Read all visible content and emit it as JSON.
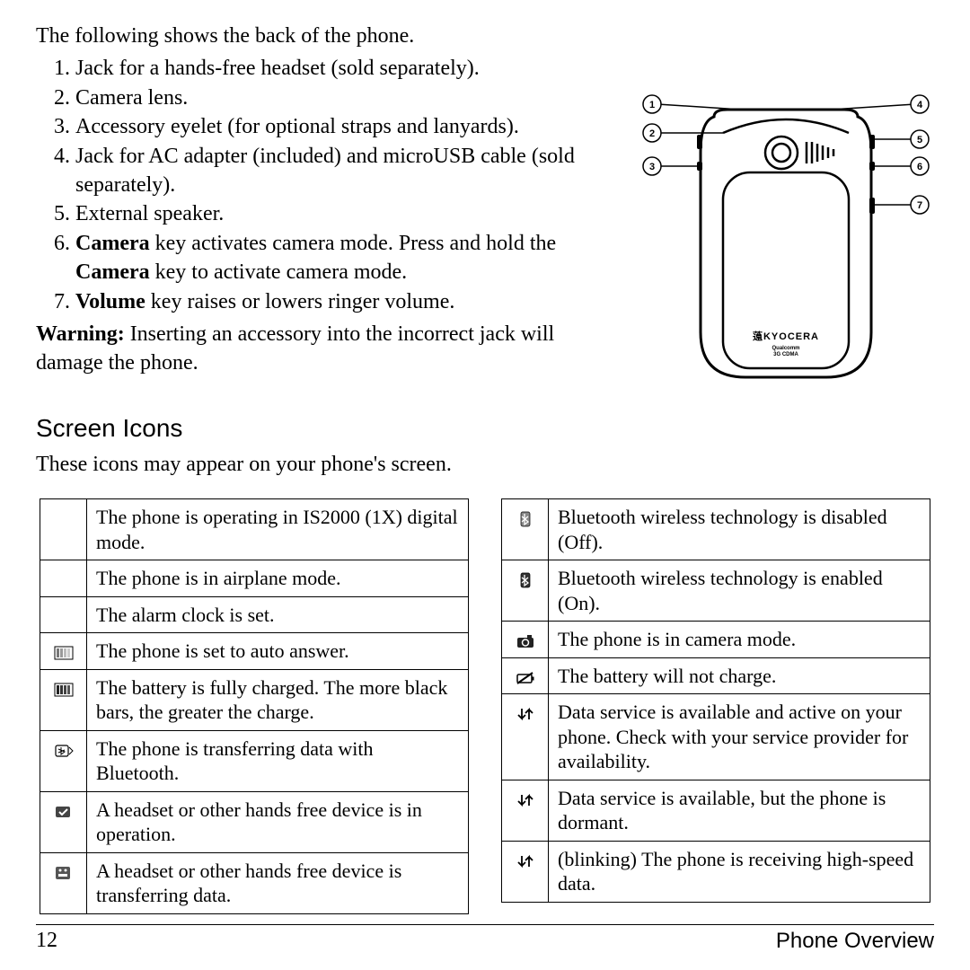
{
  "intro": "The following shows the back of the phone.",
  "features": [
    {
      "text": "Jack for a hands-free headset (sold separately)."
    },
    {
      "text": "Camera lens."
    },
    {
      "text": "Accessory eyelet (for optional straps and lanyards)."
    },
    {
      "text": "Jack for AC adapter (included) and microUSB cable (sold separately)."
    },
    {
      "text": "External speaker."
    },
    {
      "prefix_bold": "Camera",
      "mid": " key activates camera mode. Press and hold the ",
      "mid_bold": "Camera",
      "suffix": " key to activate camera mode."
    },
    {
      "prefix_bold": "Volume",
      "suffix": " key raises or lowers ringer volume."
    }
  ],
  "warning_label": "Warning:",
  "warning_text": " Inserting an accessory into the incorrect jack will damage the phone.",
  "section_heading": "Screen Icons",
  "section_intro": "These icons may appear on your phone's screen.",
  "left_table": [
    {
      "icon": "none",
      "desc": "The phone is operating in IS2000 (1X) digital mode."
    },
    {
      "icon": "none",
      "desc": "The phone is in airplane mode."
    },
    {
      "icon": "none",
      "desc": "The alarm clock is set."
    },
    {
      "icon": "bars-light",
      "desc": "The phone is set to auto answer."
    },
    {
      "icon": "bars-dark",
      "desc": "The battery is fully charged. The more black bars, the greater the charge."
    },
    {
      "icon": "bt-transfer",
      "desc": "The phone is transferring data with Bluetooth."
    },
    {
      "icon": "headset-check",
      "desc": "A headset or other hands free device is in operation."
    },
    {
      "icon": "headset-data",
      "desc": "A headset or other hands free device is transferring data."
    }
  ],
  "right_table": [
    {
      "icon": "bt-off",
      "desc": "Bluetooth wireless technology is disabled (Off)."
    },
    {
      "icon": "bt-on",
      "desc": "Bluetooth wireless technology is enabled (On)."
    },
    {
      "icon": "camera",
      "desc": "The phone is in camera mode."
    },
    {
      "icon": "battery-slash",
      "desc": "The battery will not charge."
    },
    {
      "icon": "arrows",
      "desc": "Data service is available and active on your phone. Check with your service provider for availability."
    },
    {
      "icon": "arrows",
      "desc": "Data service is available, but the phone is dormant."
    },
    {
      "icon": "arrows",
      "desc": "(blinking) The phone is receiving high-speed data."
    }
  ],
  "diagram": {
    "brand": "KYOCERA",
    "subbrand1": "Qualcomm",
    "subbrand2": "3G CDMA",
    "callouts": [
      1,
      2,
      3,
      4,
      5,
      6,
      7
    ]
  },
  "footer": {
    "page_number": "12",
    "section": "Phone Overview"
  },
  "colors": {
    "text": "#000000",
    "bg": "#ffffff",
    "line": "#000000"
  }
}
